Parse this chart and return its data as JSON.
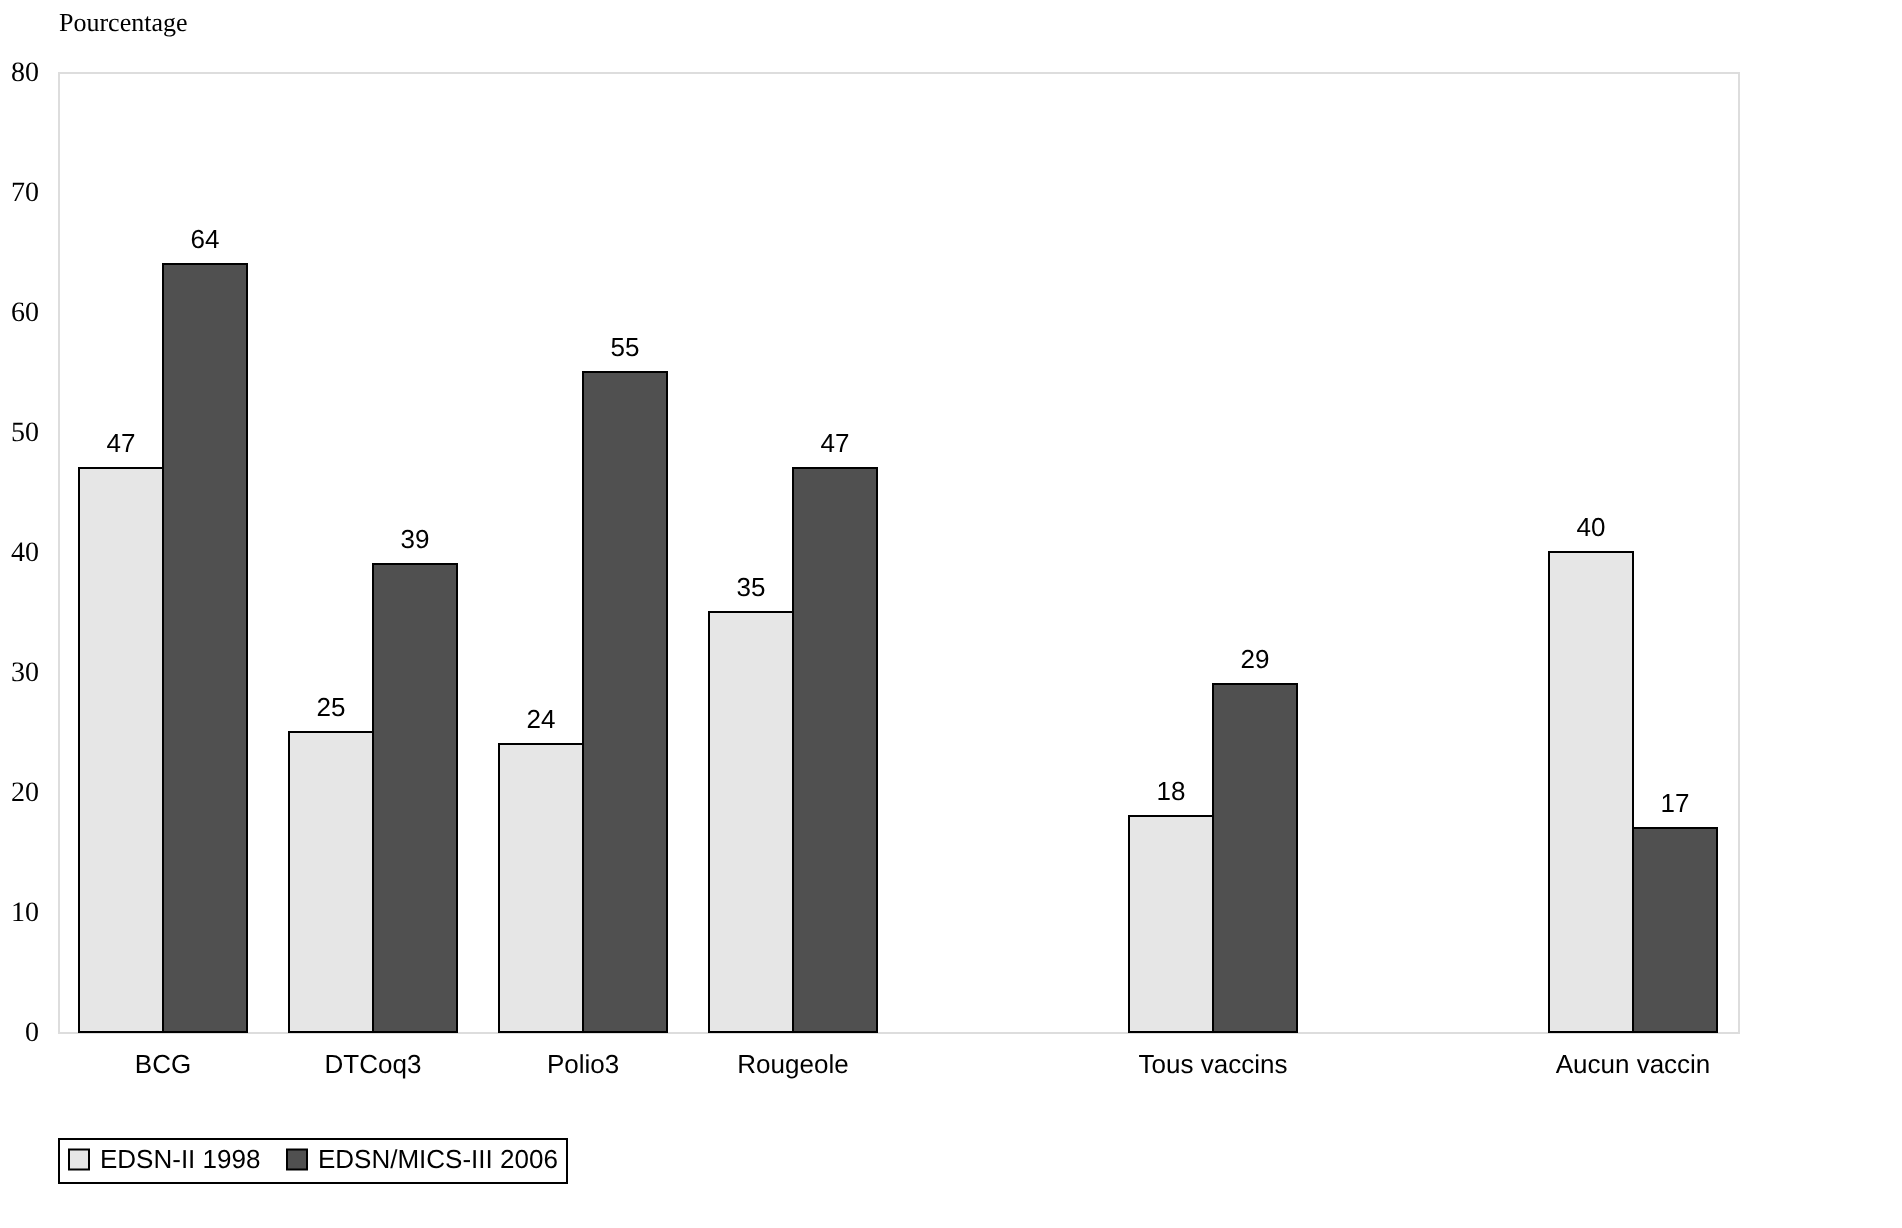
{
  "chart_data": {
    "type": "bar",
    "ylabel": "Pourcentage",
    "categories": [
      "BCG",
      "DTCoq3",
      "Polio3",
      "Rougeole",
      null,
      "Tous vaccins",
      null,
      "Aucun vaccin"
    ],
    "series": [
      {
        "name": "EDSN-II 1998",
        "color": "#e6e6e6",
        "values": [
          47,
          25,
          24,
          35,
          null,
          18,
          null,
          40
        ]
      },
      {
        "name": "EDSN/MICS-III 2006",
        "color": "#505050",
        "values": [
          64,
          39,
          55,
          47,
          null,
          29,
          null,
          17
        ]
      }
    ],
    "ylim": [
      0,
      80
    ],
    "yticks": [
      0,
      10,
      20,
      30,
      40,
      50,
      60,
      70,
      80
    ],
    "grid": false,
    "legend": "bottom",
    "data_labels": true
  }
}
